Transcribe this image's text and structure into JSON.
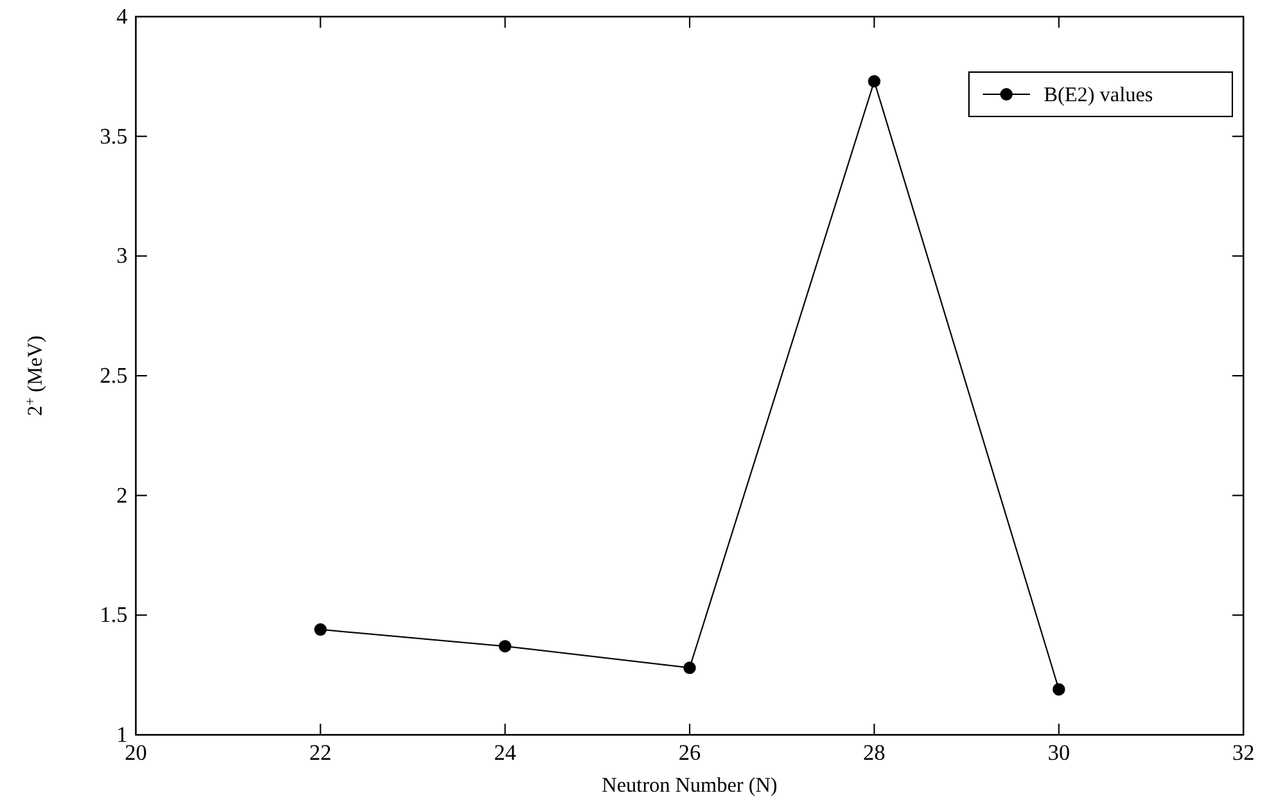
{
  "chart_data": {
    "type": "line",
    "xlabel": "Neutron Number (N)",
    "ylabel": "2$^{+}$ (MeV)",
    "x": [
      22,
      24,
      26,
      28,
      30
    ],
    "series": [
      {
        "name": "B(E2) values",
        "color": "#000000",
        "values": [
          1.44,
          1.37,
          1.28,
          3.73,
          1.19
        ]
      }
    ],
    "xlim": [
      20,
      32
    ],
    "xticks": [
      20,
      22,
      24,
      26,
      28,
      30,
      32
    ],
    "ylim": [
      1,
      4
    ],
    "yticks": [
      1,
      1.5,
      2,
      2.5,
      3,
      3.5,
      4
    ],
    "grid": false,
    "legend": "top right",
    "marker": "circle",
    "line_style": "solid"
  }
}
